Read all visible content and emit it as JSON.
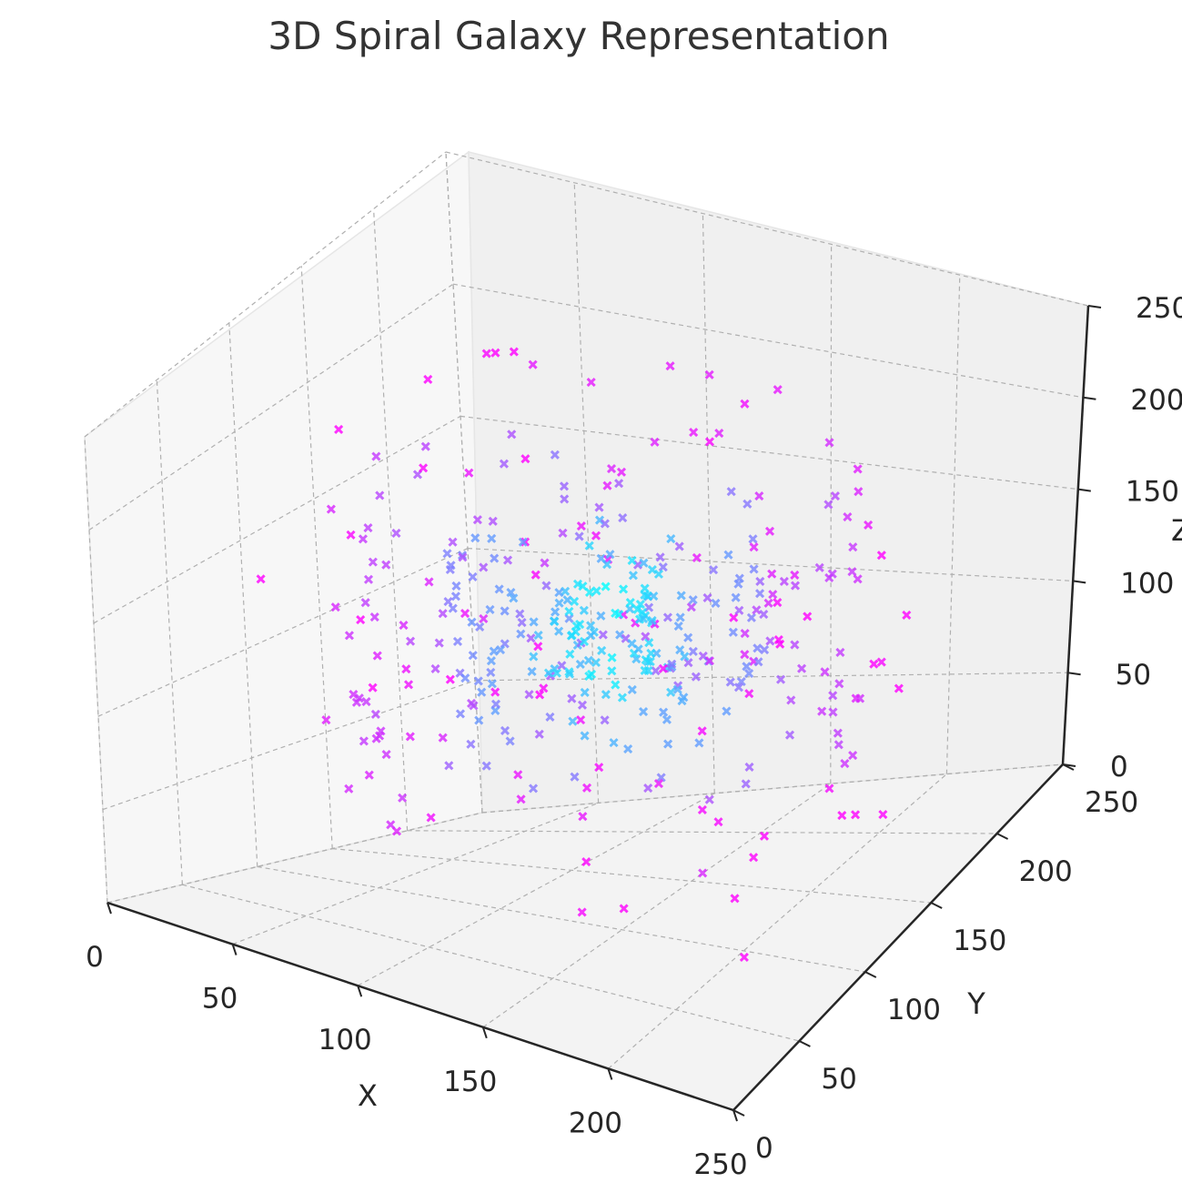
{
  "chart_data": {
    "type": "scatter",
    "projection": "3d",
    "title": "3D Spiral Galaxy Representation",
    "xlabel": "X",
    "ylabel": "Y",
    "zlabel": "Z",
    "xlim": [
      0,
      250
    ],
    "ylim": [
      0,
      250
    ],
    "zlim": [
      0,
      250
    ],
    "x_ticks": [
      "0",
      "50",
      "100",
      "150",
      "200",
      "250"
    ],
    "y_ticks": [
      "0",
      "50",
      "100",
      "150",
      "200",
      "250"
    ],
    "z_ticks": [
      "0",
      "50",
      "100",
      "150",
      "200",
      "250"
    ],
    "grid": true,
    "marker": "x",
    "colormap": "cool",
    "color_core": "#00ffff",
    "color_outer": "#ff00ff",
    "center": [
      128,
      128,
      128
    ],
    "arms": 2,
    "point_count_approx": 1000,
    "points": [
      [
        128,
        128,
        150
      ],
      [
        132,
        125,
        118
      ],
      [
        121,
        134,
        143
      ],
      [
        140,
        118,
        104
      ],
      [
        115,
        140,
        160
      ],
      [
        150,
        110,
        130
      ],
      [
        105,
        150,
        97
      ],
      [
        160,
        100,
        170
      ],
      [
        95,
        160,
        112
      ],
      [
        170,
        92,
        86
      ],
      [
        85,
        170,
        180
      ],
      [
        180,
        85,
        140
      ],
      [
        75,
        180,
        75
      ],
      [
        190,
        75,
        190
      ],
      [
        68,
        190,
        120
      ],
      [
        200,
        68,
        60
      ],
      [
        60,
        200,
        200
      ],
      [
        210,
        60,
        95
      ],
      [
        52,
        210,
        55
      ],
      [
        218,
        52,
        210
      ],
      [
        45,
        218,
        150
      ],
      [
        225,
        45,
        70
      ],
      [
        38,
        225,
        190
      ],
      [
        232,
        40,
        45
      ],
      [
        35,
        232,
        110
      ]
    ]
  }
}
